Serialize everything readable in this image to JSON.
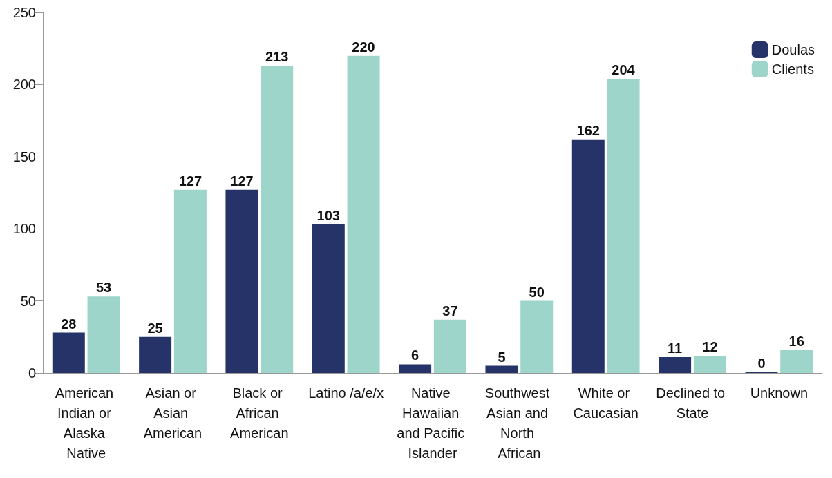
{
  "chart_data": {
    "type": "bar",
    "categories": [
      "American Indian or Alaska Native",
      "Asian or Asian American",
      "Black or African American",
      "Latino /a/e/x",
      "Native Hawaiian and Pacific Islander",
      "Southwest Asian and North African",
      "White or Caucasian",
      "Declined to State",
      "Unknown"
    ],
    "series": [
      {
        "name": "Doulas",
        "color": "#253368",
        "values": [
          28,
          25,
          127,
          103,
          6,
          5,
          162,
          11,
          0
        ]
      },
      {
        "name": "Clients",
        "color": "#9dd5cb",
        "values": [
          53,
          127,
          213,
          220,
          37,
          50,
          204,
          12,
          16
        ]
      }
    ],
    "ylim": [
      0,
      250
    ],
    "yticks": [
      0,
      50,
      100,
      150,
      200,
      250
    ],
    "grid": false,
    "legend": "top right",
    "data_labels": true
  }
}
